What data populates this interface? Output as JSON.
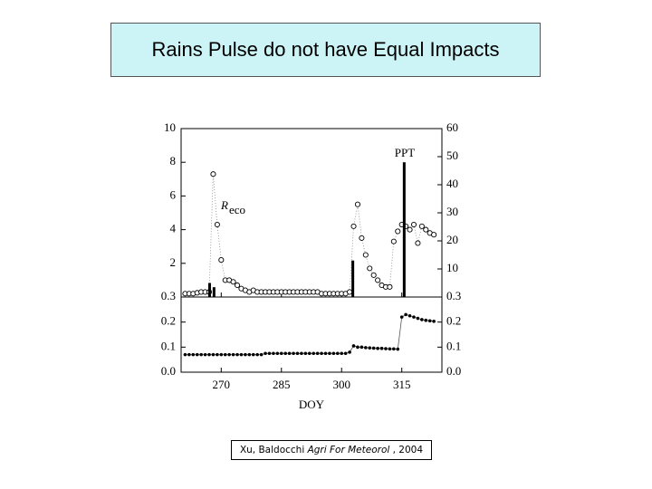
{
  "header": {
    "title": "Rains Pulse do not have Equal Impacts"
  },
  "citation": {
    "authors": "Xu, Baldocchi ",
    "journal": "Agri For Meteorol",
    "year": " , 2004"
  },
  "chart_data": [
    {
      "type": "combo",
      "annotations": [
        {
          "text": "PPT"
        },
        {
          "text": "R",
          "sub": "eco"
        }
      ],
      "xlim": [
        260,
        325
      ],
      "xticks": [
        270,
        285,
        300,
        315
      ],
      "ylim": [
        0,
        10
      ],
      "yticks": [
        2,
        4,
        6,
        8,
        10
      ],
      "y2lim": [
        0,
        60
      ],
      "y2ticks": [
        10,
        20,
        30,
        40,
        50,
        60
      ],
      "series": [
        {
          "kind": "scatter",
          "color": "#000000",
          "x": [
            261,
            262,
            263,
            264,
            265,
            266,
            267,
            268,
            269,
            270,
            271,
            272,
            273,
            274,
            275,
            276,
            277,
            278,
            279,
            280,
            281,
            282,
            283,
            284,
            285,
            286,
            287,
            288,
            289,
            290,
            291,
            292,
            293,
            294,
            295,
            296,
            297,
            298,
            299,
            300,
            301,
            302,
            303,
            304,
            305,
            306,
            307,
            308,
            309,
            310,
            311,
            312,
            313,
            314,
            315,
            316,
            317,
            318,
            319,
            320,
            321,
            322,
            323
          ],
          "values": [
            0.2,
            0.2,
            0.2,
            0.25,
            0.3,
            0.3,
            0.3,
            7.3,
            4.3,
            2.2,
            1.0,
            1.0,
            0.9,
            0.7,
            0.5,
            0.4,
            0.3,
            0.4,
            0.3,
            0.3,
            0.3,
            0.3,
            0.3,
            0.3,
            0.3,
            0.3,
            0.3,
            0.3,
            0.3,
            0.3,
            0.3,
            0.3,
            0.3,
            0.3,
            0.2,
            0.2,
            0.2,
            0.2,
            0.2,
            0.2,
            0.2,
            0.3,
            4.2,
            5.5,
            3.5,
            2.5,
            1.7,
            1.3,
            1.0,
            0.7,
            0.6,
            0.6,
            3.3,
            3.9,
            4.3,
            4.2,
            4.0,
            4.3,
            3.2,
            4.2,
            4.0,
            3.8,
            3.7
          ]
        },
        {
          "kind": "bar",
          "axis": "y2",
          "color": "#000000",
          "x": [
            267.1,
            268.2,
            302.8,
            315.6
          ],
          "values": [
            5,
            3.5,
            13,
            48
          ]
        }
      ]
    },
    {
      "type": "line",
      "xlim": [
        260,
        325
      ],
      "xticks": [
        270,
        285,
        300,
        315
      ],
      "xlabel": "DOY",
      "ylim": [
        0,
        0.3
      ],
      "yticks": [
        {
          "value": 0,
          "label": "0.0"
        },
        0.1,
        0.2,
        0.3
      ],
      "y2lim": [
        0,
        0.3
      ],
      "y2ticks": [
        {
          "value": 0,
          "label": "0.0"
        },
        0.1,
        0.2,
        0.3
      ],
      "series": [
        {
          "color": "#000000",
          "x": [
            261,
            262,
            263,
            264,
            265,
            266,
            267,
            268,
            269,
            270,
            271,
            272,
            273,
            274,
            275,
            276,
            277,
            278,
            279,
            280,
            281,
            282,
            283,
            284,
            285,
            286,
            287,
            288,
            289,
            290,
            291,
            292,
            293,
            294,
            295,
            296,
            297,
            298,
            299,
            300,
            301,
            302,
            303,
            304,
            305,
            306,
            307,
            308,
            309,
            310,
            311,
            312,
            313,
            314,
            315,
            316,
            317,
            318,
            319,
            320,
            321,
            322,
            323
          ],
          "values": [
            0.07,
            0.07,
            0.07,
            0.07,
            0.07,
            0.07,
            0.07,
            0.07,
            0.07,
            0.07,
            0.07,
            0.07,
            0.07,
            0.07,
            0.07,
            0.07,
            0.07,
            0.07,
            0.07,
            0.07,
            0.075,
            0.075,
            0.075,
            0.075,
            0.075,
            0.075,
            0.075,
            0.075,
            0.075,
            0.075,
            0.075,
            0.075,
            0.075,
            0.075,
            0.075,
            0.075,
            0.075,
            0.075,
            0.075,
            0.075,
            0.075,
            0.08,
            0.105,
            0.1,
            0.1,
            0.098,
            0.097,
            0.096,
            0.095,
            0.095,
            0.094,
            0.093,
            0.093,
            0.092,
            0.22,
            0.23,
            0.225,
            0.22,
            0.215,
            0.21,
            0.207,
            0.205,
            0.203
          ]
        }
      ]
    }
  ]
}
